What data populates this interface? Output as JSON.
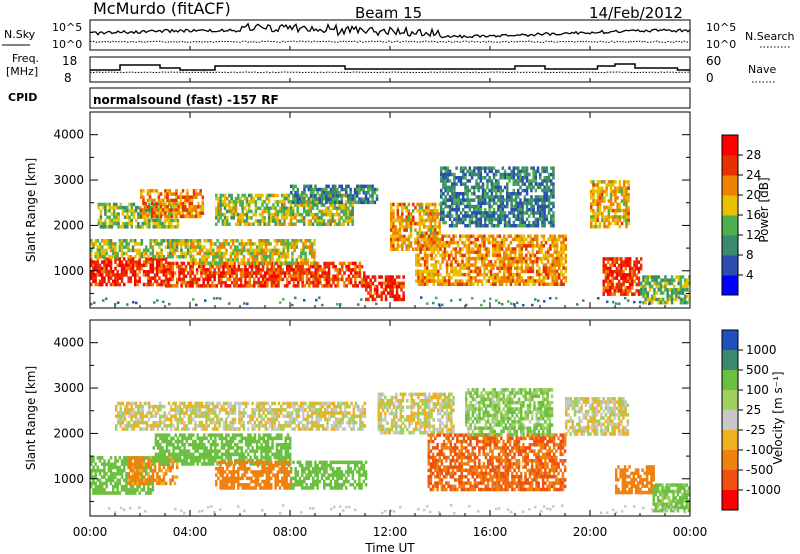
{
  "header": {
    "station": "McMurdo (fitACF)",
    "beam": "Beam 15",
    "date": "14/Feb/2012"
  },
  "noise_panel": {
    "left_label": "N.Sky",
    "right_label": "N.Search",
    "left_ticks": [
      "10^5",
      "10^0"
    ],
    "right_ticks": [
      "10^5",
      "10^0"
    ]
  },
  "freq_panel": {
    "left_label_1": "Freq.",
    "left_label_2": "[MHz]",
    "right_label": "Nave",
    "left_ticks": [
      "18",
      "8"
    ],
    "right_ticks": [
      "60",
      "0"
    ]
  },
  "cpid_panel": {
    "label": "CPID",
    "text": "normalsound (fast) -157 RF"
  },
  "power_panel": {
    "ylabel": "Slant Range [km]",
    "yticks": [
      "1000",
      "2000",
      "3000",
      "4000"
    ],
    "colorbar_label": "Power [dB]",
    "colorbar_ticks": [
      "4",
      "8",
      "12",
      "16",
      "20",
      "24",
      "28"
    ],
    "colorbar_colors": [
      "#0000ff",
      "#2a4fb0",
      "#3a8a6e",
      "#4cb04c",
      "#e8c000",
      "#f08000",
      "#e83000",
      "#ff0000"
    ]
  },
  "velocity_panel": {
    "ylabel": "Slant Range [km]",
    "yticks": [
      "1000",
      "2000",
      "3000",
      "4000"
    ],
    "colorbar_label": "Velocity [m s⁻¹]",
    "colorbar_ticks": [
      "1000",
      "500",
      "100",
      "25",
      "-25",
      "-100",
      "-500",
      "-1000"
    ],
    "colorbar_colors": [
      "#2050c0",
      "#3a8a6e",
      "#6cc040",
      "#a0d060",
      "#c8c8c8",
      "#f0b020",
      "#f08010",
      "#f05010",
      "#ff0000"
    ]
  },
  "x_axis": {
    "ticks": [
      "00:00",
      "04:00",
      "08:00",
      "12:00",
      "16:00",
      "20:00",
      "00:00"
    ],
    "label": "Time UT"
  },
  "chart_data": [
    {
      "type": "line",
      "panel": "noise",
      "x_range_hours": [
        0,
        24
      ],
      "y_scale": "log",
      "ylim": [
        1,
        100000
      ]
    },
    {
      "type": "line",
      "panel": "frequency",
      "x_range_hours": [
        0,
        24
      ],
      "ylim_mhz": [
        8,
        18
      ],
      "ylim_nave": [
        0,
        60
      ]
    },
    {
      "type": "heatmap",
      "panel": "power",
      "x_range_hours": [
        0,
        24
      ],
      "y_range_km": [
        180,
        4500
      ],
      "value_range_db": [
        0,
        30
      ],
      "series": [
        {
          "h0": 0.0,
          "h1": 3.0,
          "r0": 700,
          "r1": 1300,
          "db": 27
        },
        {
          "h0": 0.0,
          "h1": 4.0,
          "r0": 1300,
          "r1": 1700,
          "db": 16
        },
        {
          "h0": 0.3,
          "h1": 3.5,
          "r0": 2000,
          "r1": 2500,
          "db": 15
        },
        {
          "h0": 2.0,
          "h1": 4.5,
          "r0": 2200,
          "r1": 2800,
          "db": 22
        },
        {
          "h0": 3.0,
          "h1": 11.0,
          "r0": 700,
          "r1": 1200,
          "db": 26
        },
        {
          "h0": 4.0,
          "h1": 9.0,
          "r0": 1200,
          "r1": 1700,
          "db": 18
        },
        {
          "h0": 5.0,
          "h1": 10.5,
          "r0": 2000,
          "r1": 2700,
          "db": 16
        },
        {
          "h0": 8.0,
          "h1": 11.5,
          "r0": 2500,
          "r1": 2900,
          "db": 10
        },
        {
          "h0": 11.0,
          "h1": 12.5,
          "r0": 400,
          "r1": 900,
          "db": 28
        },
        {
          "h0": 12.0,
          "h1": 14.0,
          "r0": 1500,
          "r1": 2500,
          "db": 20
        },
        {
          "h0": 13.0,
          "h1": 19.0,
          "r0": 700,
          "r1": 1800,
          "db": 21
        },
        {
          "h0": 14.0,
          "h1": 18.5,
          "r0": 2000,
          "r1": 3300,
          "db": 9
        },
        {
          "h0": 20.0,
          "h1": 21.5,
          "r0": 2000,
          "r1": 3000,
          "db": 20
        },
        {
          "h0": 20.5,
          "h1": 22.0,
          "r0": 500,
          "r1": 1300,
          "db": 27
        },
        {
          "h0": 22.0,
          "h1": 24.0,
          "r0": 300,
          "r1": 900,
          "db": 14
        }
      ]
    },
    {
      "type": "heatmap",
      "panel": "velocity",
      "x_range_hours": [
        0,
        24
      ],
      "y_range_km": [
        180,
        4500
      ],
      "value_range_ms": [
        -1000,
        1000
      ],
      "series": [
        {
          "h0": 0.0,
          "h1": 2.5,
          "r0": 700,
          "r1": 1500,
          "v": 300
        },
        {
          "h0": 1.5,
          "h1": 3.5,
          "r0": 900,
          "r1": 1500,
          "v": -150
        },
        {
          "h0": 2.5,
          "h1": 8.0,
          "r0": 1300,
          "r1": 2000,
          "v": 350
        },
        {
          "h0": 1.0,
          "h1": 11.0,
          "r0": 2100,
          "r1": 2700,
          "v": 0
        },
        {
          "h0": 5.0,
          "h1": 8.0,
          "r0": 800,
          "r1": 1400,
          "v": -200
        },
        {
          "h0": 8.0,
          "h1": 11.0,
          "r0": 800,
          "r1": 1400,
          "v": 300
        },
        {
          "h0": 11.5,
          "h1": 14.5,
          "r0": 2000,
          "r1": 2900,
          "v": 0
        },
        {
          "h0": 13.5,
          "h1": 19.0,
          "r0": 800,
          "r1": 2000,
          "v": -500
        },
        {
          "h0": 15.0,
          "h1": 18.5,
          "r0": 2000,
          "r1": 3000,
          "v": 100
        },
        {
          "h0": 19.0,
          "h1": 21.5,
          "r0": 2000,
          "r1": 2800,
          "v": 0
        },
        {
          "h0": 21.0,
          "h1": 22.5,
          "r0": 700,
          "r1": 1300,
          "v": -300
        },
        {
          "h0": 22.5,
          "h1": 24.0,
          "r0": 300,
          "r1": 900,
          "v": 150
        }
      ]
    }
  ]
}
